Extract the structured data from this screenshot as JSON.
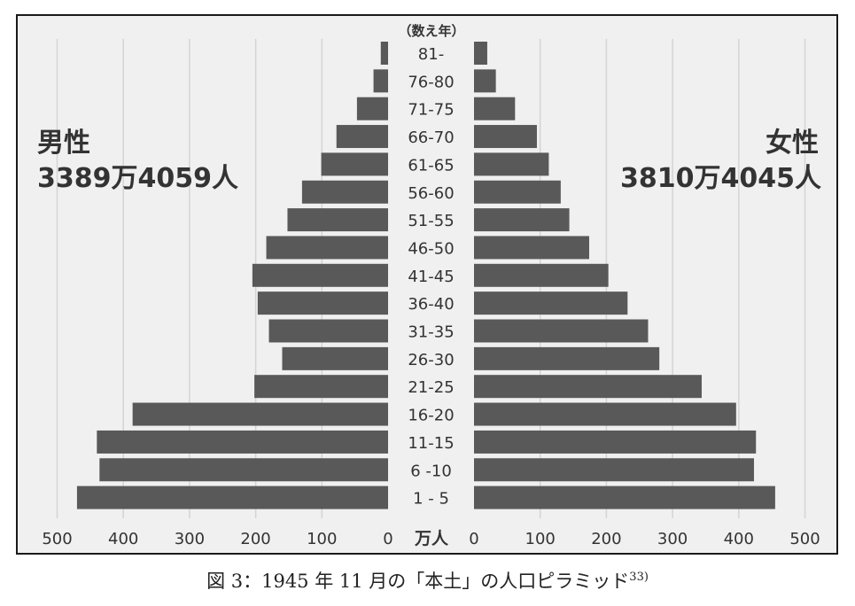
{
  "chart_data": {
    "type": "bar",
    "age_header": "（数え年）",
    "categories": [
      "81-",
      "76-80",
      "71-75",
      "66-70",
      "61-65",
      "56-60",
      "51-55",
      "46-50",
      "41-45",
      "36-40",
      "31-35",
      "26-30",
      "21-25",
      "16-20",
      "11-15",
      "6 -10",
      "1 - 5"
    ],
    "series": [
      {
        "name": "男性",
        "total": "3389万4059人",
        "values": [
          11,
          22,
          47,
          78,
          101,
          130,
          152,
          184,
          205,
          197,
          180,
          160,
          202,
          386,
          440,
          436,
          470
        ]
      },
      {
        "name": "女性",
        "total": "3810万4045人",
        "values": [
          20,
          33,
          62,
          95,
          113,
          131,
          144,
          174,
          203,
          232,
          263,
          280,
          344,
          396,
          426,
          423,
          455
        ]
      }
    ],
    "xticks": [
      "500",
      "400",
      "300",
      "200",
      "100",
      "0",
      "0",
      "100",
      "200",
      "300",
      "400",
      "500"
    ],
    "unit_label": "万人",
    "xlim": [
      0,
      500
    ],
    "grid": true,
    "bar_color": "#595959"
  },
  "caption": {
    "text": "図 3：1945 年 11 月の「本土」の人口ピラミッド",
    "sup": "33)"
  }
}
